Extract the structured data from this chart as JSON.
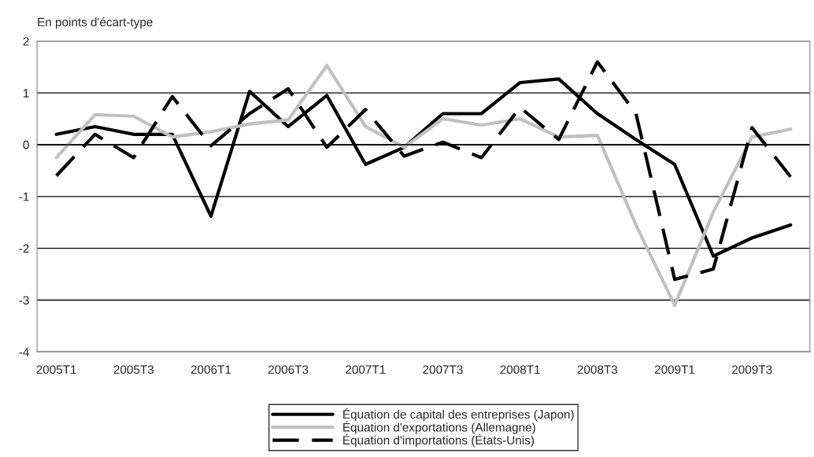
{
  "chart_data": {
    "type": "line",
    "ylabel": "En points d'écart-type",
    "categories": [
      "2005T1",
      null,
      "2005T3",
      null,
      "2006T1",
      null,
      "2006T3",
      null,
      "2007T1",
      null,
      "2007T3",
      null,
      "2008T1",
      null,
      "2008T3",
      null,
      "2009T1",
      null,
      "2009T3",
      null
    ],
    "series": [
      {
        "name": "Équation de capital des entreprises (Japon)",
        "color": "#000000",
        "line_style": "solid",
        "values": [
          0.2,
          0.35,
          0.2,
          0.2,
          -1.38,
          1.03,
          0.35,
          0.95,
          -0.38,
          -0.05,
          0.6,
          0.6,
          1.2,
          1.27,
          0.6,
          0.1,
          -0.38,
          -2.15,
          -1.8,
          -1.55
        ]
      },
      {
        "name": "Équation d'exportations (Allemagne)",
        "color": "#c0c0c0",
        "line_style": "solid",
        "values": [
          -0.25,
          0.58,
          0.55,
          0.15,
          0.25,
          0.4,
          0.48,
          1.53,
          0.35,
          -0.05,
          0.5,
          0.38,
          0.5,
          0.15,
          0.18,
          -1.55,
          -3.1,
          -1.3,
          0.15,
          0.3
        ]
      },
      {
        "name": "Équation d'importations (États-Unis)",
        "color": "#000000",
        "line_style": "dashed",
        "values": [
          -0.6,
          0.2,
          -0.25,
          0.93,
          -0.02,
          0.6,
          1.08,
          -0.05,
          0.68,
          -0.22,
          0.05,
          -0.25,
          0.72,
          0.1,
          1.6,
          0.6,
          -2.6,
          -2.4,
          0.33,
          -0.62
        ]
      }
    ],
    "ylim": [
      -4,
      2
    ],
    "yticks": [
      -4,
      -3,
      -2,
      -1,
      0,
      1,
      2
    ],
    "grid": "y",
    "legend": "bottom",
    "marker": "none"
  }
}
